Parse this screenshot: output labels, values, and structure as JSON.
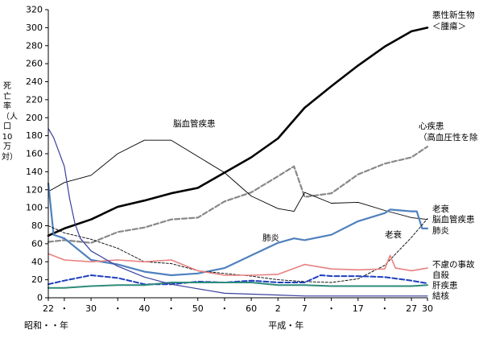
{
  "chart_data": {
    "type": "line",
    "ylabel": "死亡率（人口10万対）",
    "ylim": [
      0,
      320
    ],
    "yticks": [
      0,
      20,
      40,
      60,
      80,
      100,
      120,
      140,
      160,
      180,
      200,
      220,
      240,
      260,
      280,
      300,
      320
    ],
    "xlim": [
      1947,
      2018
    ],
    "xticks": [
      {
        "year": 1947,
        "label": "22"
      },
      {
        "year": 1950,
        "label": "・"
      },
      {
        "year": 1955,
        "label": "30"
      },
      {
        "year": 1960,
        "label": "・"
      },
      {
        "year": 1965,
        "label": "40"
      },
      {
        "year": 1970,
        "label": "・"
      },
      {
        "year": 1975,
        "label": "50"
      },
      {
        "year": 1980,
        "label": "・"
      },
      {
        "year": 1985,
        "label": "60"
      },
      {
        "year": 1990,
        "label": "2"
      },
      {
        "year": 1995,
        "label": "7"
      },
      {
        "year": 2000,
        "label": "・"
      },
      {
        "year": 2005,
        "label": "17"
      },
      {
        "year": 2010,
        "label": "・"
      },
      {
        "year": 2015,
        "label": "27"
      },
      {
        "year": 2018,
        "label": "30"
      }
    ],
    "era_labels": {
      "showa": "昭和・・年",
      "heisei": "平成・年"
    },
    "series": [
      {
        "name": "悪性新生物<腫瘍>",
        "label_lines": [
          "悪性新生物",
          "＜腫瘍＞"
        ],
        "color": "#000000",
        "width": 2.6,
        "dash": "",
        "points": [
          [
            1947,
            69
          ],
          [
            1950,
            77
          ],
          [
            1955,
            87
          ],
          [
            1960,
            101
          ],
          [
            1965,
            108
          ],
          [
            1970,
            116
          ],
          [
            1975,
            122
          ],
          [
            1980,
            139
          ],
          [
            1985,
            156
          ],
          [
            1990,
            177
          ],
          [
            1995,
            211
          ],
          [
            2000,
            235
          ],
          [
            2005,
            258
          ],
          [
            2010,
            279
          ],
          [
            2015,
            296
          ],
          [
            2018,
            300
          ]
        ]
      },
      {
        "name": "心疾患(高血圧性を除く)",
        "label_lines": [
          "心疾患",
          "（高血圧性を除く）"
        ],
        "color": "#888888",
        "width": 2.2,
        "dash": "6,3",
        "points": [
          [
            1947,
            62
          ],
          [
            1950,
            64
          ],
          [
            1955,
            61
          ],
          [
            1960,
            73
          ],
          [
            1965,
            78
          ],
          [
            1970,
            87
          ],
          [
            1975,
            89
          ],
          [
            1980,
            107
          ],
          [
            1985,
            117
          ],
          [
            1990,
            135
          ],
          [
            1993,
            146
          ],
          [
            1995,
            112
          ],
          [
            2000,
            116
          ],
          [
            2005,
            137
          ],
          [
            2010,
            149
          ],
          [
            2015,
            156
          ],
          [
            2018,
            168
          ]
        ]
      },
      {
        "name": "脳血管疾患",
        "label_lines": [
          "脳血管疾患"
        ],
        "color": "#000000",
        "width": 0.9,
        "dash": "",
        "points": [
          [
            1947,
            118
          ],
          [
            1950,
            128
          ],
          [
            1955,
            136
          ],
          [
            1960,
            160
          ],
          [
            1965,
            175
          ],
          [
            1970,
            175
          ],
          [
            1975,
            157
          ],
          [
            1980,
            139
          ],
          [
            1985,
            113
          ],
          [
            1990,
            99
          ],
          [
            1993,
            96
          ],
          [
            1995,
            117
          ],
          [
            2000,
            105
          ],
          [
            2005,
            106
          ],
          [
            2010,
            97
          ],
          [
            2015,
            89
          ],
          [
            2018,
            87
          ]
        ]
      },
      {
        "name": "肺炎",
        "label_lines": [
          "肺炎"
        ],
        "color": "#4f81bd",
        "width": 2.2,
        "dash": "",
        "points": [
          [
            1947,
            127
          ],
          [
            1948,
            70
          ],
          [
            1950,
            66
          ],
          [
            1955,
            42
          ],
          [
            1960,
            37
          ],
          [
            1965,
            29
          ],
          [
            1970,
            25
          ],
          [
            1975,
            27
          ],
          [
            1980,
            33
          ],
          [
            1985,
            47
          ],
          [
            1990,
            61
          ],
          [
            1993,
            66
          ],
          [
            1995,
            64
          ],
          [
            2000,
            70
          ],
          [
            2005,
            85
          ],
          [
            2010,
            94
          ],
          [
            2011,
            98
          ],
          [
            2013,
            97
          ],
          [
            2015,
            96
          ],
          [
            2016,
            96
          ],
          [
            2017,
            77
          ],
          [
            2018,
            77
          ]
        ]
      },
      {
        "name": "老衰",
        "label_lines": [
          "老衰"
        ],
        "color": "#000000",
        "width": 0.9,
        "dash": "3,2",
        "points": [
          [
            1947,
            80
          ],
          [
            1950,
            72
          ],
          [
            1955,
            65
          ],
          [
            1960,
            55
          ],
          [
            1965,
            40
          ],
          [
            1970,
            38
          ],
          [
            1975,
            30
          ],
          [
            1980,
            27
          ],
          [
            1985,
            24
          ],
          [
            1990,
            20
          ],
          [
            1995,
            18
          ],
          [
            2000,
            17
          ],
          [
            2005,
            21
          ],
          [
            2010,
            36
          ],
          [
            2015,
            67
          ],
          [
            2018,
            88
          ]
        ]
      },
      {
        "name": "不慮の事故",
        "label_lines": [
          "不慮の事故"
        ],
        "color": "#e88080",
        "width": 1.6,
        "dash": "",
        "points": [
          [
            1947,
            49
          ],
          [
            1950,
            42
          ],
          [
            1955,
            40
          ],
          [
            1960,
            42
          ],
          [
            1965,
            40
          ],
          [
            1970,
            42
          ],
          [
            1975,
            30
          ],
          [
            1980,
            25
          ],
          [
            1985,
            25
          ],
          [
            1990,
            26
          ],
          [
            1995,
            37
          ],
          [
            2000,
            32
          ],
          [
            2005,
            31
          ],
          [
            2010,
            32
          ],
          [
            2011,
            47
          ],
          [
            2012,
            33
          ],
          [
            2015,
            30
          ],
          [
            2018,
            33
          ]
        ]
      },
      {
        "name": "自殺",
        "label_lines": [
          "自殺"
        ],
        "color": "#1f3fbf",
        "width": 2.0,
        "dash": "6,3",
        "points": [
          [
            1947,
            15
          ],
          [
            1950,
            19
          ],
          [
            1955,
            25
          ],
          [
            1960,
            22
          ],
          [
            1965,
            15
          ],
          [
            1970,
            15
          ],
          [
            1975,
            18
          ],
          [
            1980,
            17
          ],
          [
            1985,
            19
          ],
          [
            1990,
            17
          ],
          [
            1995,
            17
          ],
          [
            1998,
            25
          ],
          [
            2000,
            24
          ],
          [
            2005,
            24
          ],
          [
            2010,
            23
          ],
          [
            2015,
            19
          ],
          [
            2018,
            16
          ]
        ]
      },
      {
        "name": "肝疾患",
        "label_lines": [
          "肝疾患"
        ],
        "color": "#2e8b7a",
        "width": 2.0,
        "dash": "",
        "points": [
          [
            1947,
            11
          ],
          [
            1950,
            11
          ],
          [
            1955,
            13
          ],
          [
            1960,
            14
          ],
          [
            1965,
            14
          ],
          [
            1970,
            17
          ],
          [
            1975,
            17
          ],
          [
            1980,
            17
          ],
          [
            1985,
            17
          ],
          [
            1990,
            14
          ],
          [
            1995,
            14
          ],
          [
            2000,
            13
          ],
          [
            2005,
            13
          ],
          [
            2010,
            13
          ],
          [
            2015,
            13
          ],
          [
            2018,
            14
          ]
        ]
      },
      {
        "name": "結核",
        "label_lines": [
          "結核"
        ],
        "color": "#3a3f9e",
        "width": 1.2,
        "dash": "",
        "points": [
          [
            1947,
            188
          ],
          [
            1948,
            178
          ],
          [
            1950,
            146
          ],
          [
            1951,
            110
          ],
          [
            1952,
            82
          ],
          [
            1953,
            66
          ],
          [
            1955,
            52
          ],
          [
            1960,
            35
          ],
          [
            1965,
            23
          ],
          [
            1970,
            15
          ],
          [
            1975,
            10
          ],
          [
            1980,
            5
          ],
          [
            1985,
            4
          ],
          [
            1990,
            3
          ],
          [
            1995,
            2
          ],
          [
            2000,
            2
          ],
          [
            2005,
            2
          ],
          [
            2010,
            2
          ],
          [
            2015,
            2
          ],
          [
            2018,
            2
          ]
        ]
      }
    ]
  }
}
